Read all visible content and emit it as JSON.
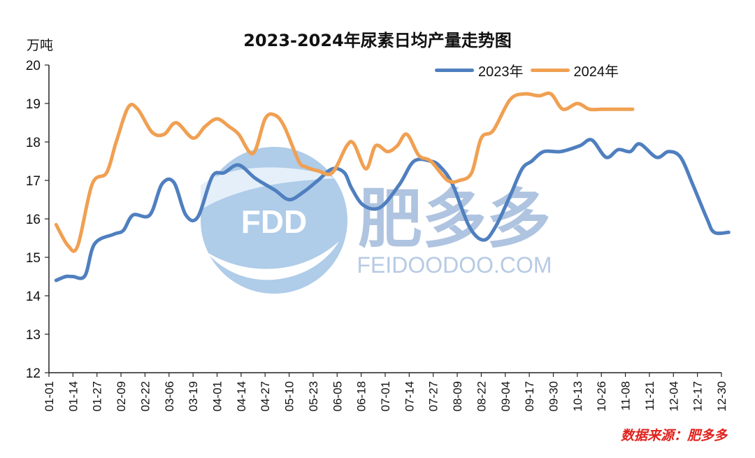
{
  "chart_data": {
    "type": "line",
    "title": "2023-2024年尿素日均产量走势图",
    "ylabel": "万吨",
    "ylim": [
      12,
      20
    ],
    "yticks": [
      12,
      13,
      14,
      15,
      16,
      17,
      18,
      19,
      20
    ],
    "categories": [
      "01-01",
      "01-14",
      "01-27",
      "02-09",
      "02-22",
      "03-06",
      "03-19",
      "04-01",
      "04-14",
      "04-27",
      "05-10",
      "05-23",
      "06-05",
      "06-18",
      "07-01",
      "07-14",
      "07-27",
      "08-09",
      "08-22",
      "09-04",
      "09-17",
      "09-30",
      "10-13",
      "10-26",
      "11-08",
      "11-21",
      "12-04",
      "12-17",
      "12-30"
    ],
    "grid": false,
    "legend_position": "top-right",
    "series": [
      {
        "name": "2023年",
        "color": "#4f7fbf",
        "x": [
          0.3,
          0.7,
          1.0,
          1.5,
          1.9,
          2.7,
          3.1,
          3.5,
          4.2,
          4.7,
          5.2,
          5.7,
          6.2,
          6.8,
          7.3,
          7.9,
          8.6,
          9.4,
          10.0,
          10.6,
          11.2,
          11.8,
          12.3,
          12.6,
          13.1,
          13.8,
          14.6,
          15.2,
          15.9,
          16.3,
          16.8,
          17.5,
          18.1,
          18.6,
          19.2,
          19.7,
          20.1,
          20.6,
          21.3,
          22.1,
          22.6,
          23.2,
          23.7,
          24.2,
          24.6,
          25.3,
          25.8,
          26.3,
          26.8,
          27.4,
          27.7,
          28.3
        ],
        "values": [
          14.4,
          14.5,
          14.5,
          14.52,
          15.35,
          15.6,
          15.7,
          16.1,
          16.1,
          16.9,
          16.95,
          16.1,
          16.05,
          17.1,
          17.2,
          17.4,
          17.05,
          16.75,
          16.5,
          16.7,
          17.0,
          17.3,
          17.2,
          16.8,
          16.35,
          16.3,
          16.9,
          17.5,
          17.5,
          17.35,
          16.9,
          15.8,
          15.45,
          15.8,
          16.6,
          17.3,
          17.5,
          17.75,
          17.75,
          17.9,
          18.05,
          17.6,
          17.8,
          17.75,
          17.95,
          17.6,
          17.75,
          17.6,
          16.9,
          16.0,
          15.65,
          15.65
        ]
      },
      {
        "name": "2024年",
        "color": "#f0a052",
        "x": [
          0.3,
          0.8,
          1.2,
          1.8,
          2.4,
          2.8,
          3.3,
          3.7,
          4.3,
          4.8,
          5.3,
          6.0,
          6.5,
          7.0,
          7.5,
          7.9,
          8.5,
          9.0,
          9.4,
          9.8,
          10.4,
          10.7,
          11.2,
          11.8,
          12.4,
          12.7,
          13.2,
          13.6,
          14.1,
          14.5,
          14.9,
          15.4,
          15.9,
          16.6,
          17.1,
          17.6,
          18.0,
          18.5,
          19.2,
          19.8,
          20.4,
          20.9,
          21.4,
          22.0,
          22.5,
          23.0,
          23.5,
          23.8,
          24.3
        ],
        "values": [
          15.85,
          15.3,
          15.3,
          16.9,
          17.2,
          18.0,
          18.9,
          18.85,
          18.25,
          18.2,
          18.5,
          18.1,
          18.4,
          18.6,
          18.4,
          18.2,
          17.7,
          18.6,
          18.7,
          18.4,
          17.5,
          17.35,
          17.25,
          17.2,
          17.9,
          17.95,
          17.3,
          17.9,
          17.75,
          17.9,
          18.2,
          17.65,
          17.5,
          17.0,
          17.0,
          17.2,
          18.1,
          18.3,
          19.1,
          19.25,
          19.2,
          19.25,
          18.85,
          19.0,
          18.85,
          18.85,
          18.85,
          18.85,
          18.85
        ]
      }
    ]
  },
  "watermark": {
    "logo_text": "FDD",
    "brand_cn": "肥多多",
    "brand_en": "FEIDOODOO.COM"
  },
  "source": "数据来源：肥多多"
}
